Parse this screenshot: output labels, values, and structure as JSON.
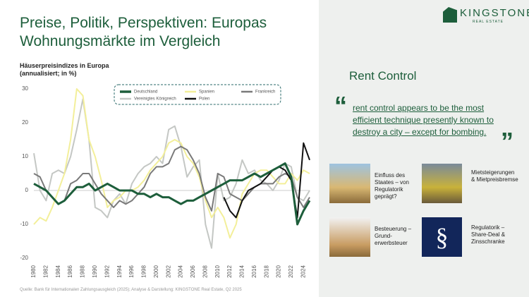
{
  "header": {
    "title_lines": [
      "Preise, Politik, Perspektiven: Europas",
      "Wohnungsmärkte im Vergleich"
    ]
  },
  "logo": {
    "name": "KINGSTONE",
    "tagline": "REAL ESTATE"
  },
  "chart_data": {
    "type": "line",
    "title_lines": [
      "Häuserpreisindizes in Europa",
      "(annualisiert; in %)"
    ],
    "x": [
      1980,
      1981,
      1982,
      1983,
      1984,
      1985,
      1986,
      1987,
      1988,
      1989,
      1990,
      1991,
      1992,
      1993,
      1994,
      1995,
      1996,
      1997,
      1998,
      1999,
      2000,
      2001,
      2002,
      2003,
      2004,
      2005,
      2006,
      2007,
      2008,
      2009,
      2010,
      2011,
      2012,
      2013,
      2014,
      2015,
      2016,
      2017,
      2018,
      2019,
      2020,
      2021,
      2022,
      2023,
      2024,
      2025
    ],
    "xlim": [
      1980,
      2025
    ],
    "xticks": [
      1980,
      1982,
      1984,
      1986,
      1988,
      1990,
      1992,
      1994,
      1996,
      1998,
      2000,
      2002,
      2004,
      2006,
      2008,
      2010,
      2012,
      2014,
      2016,
      2018,
      2020,
      2022,
      2024
    ],
    "ylim": [
      -20,
      30
    ],
    "yticks": [
      -20,
      -10,
      0,
      10,
      20,
      30
    ],
    "series": [
      {
        "name": "Deutschland",
        "color": "#1d5e3b",
        "width": 3,
        "values": [
          2,
          1,
          0,
          -2,
          -4,
          -3,
          -1,
          1,
          1,
          2,
          0,
          1,
          2,
          1,
          0,
          0,
          0,
          -1,
          -1,
          -2,
          -1,
          -2,
          -2,
          -3,
          -4,
          -3,
          -3,
          -2,
          -1,
          0,
          1,
          2,
          3,
          3,
          3,
          4,
          5,
          4,
          5,
          6,
          7,
          8,
          4,
          -10,
          -6,
          -3
        ]
      },
      {
        "name": "Spanien",
        "color": "#f3ef9a",
        "width": 2,
        "values": [
          -10,
          -8,
          -9,
          -5,
          0,
          5,
          15,
          30,
          28,
          15,
          10,
          3,
          -5,
          -3,
          -2,
          0,
          0,
          1,
          3,
          6,
          8,
          10,
          14,
          15,
          14,
          10,
          8,
          4,
          -3,
          -8,
          -5,
          -8,
          -14,
          -10,
          -1,
          2,
          5,
          6,
          6,
          4,
          2,
          2,
          5,
          3,
          6,
          5
        ]
      },
      {
        "name": "Frankreich",
        "color": "#7a7a7a",
        "width": 2,
        "values": [
          5,
          4,
          0,
          -2,
          -4,
          -3,
          2,
          3,
          5,
          5,
          2,
          -1,
          -3,
          -5,
          -3,
          -4,
          -3,
          -1,
          1,
          5,
          7,
          7,
          8,
          12,
          13,
          12,
          9,
          5,
          -2,
          -6,
          5,
          4,
          -1,
          -2,
          -3,
          -1,
          1,
          2,
          2,
          2,
          4,
          5,
          4,
          -2,
          -5,
          -2
        ]
      },
      {
        "name": "Vereinigtes Königreich",
        "color": "#c4c7c4",
        "width": 2,
        "values": [
          11,
          0,
          -3,
          5,
          6,
          5,
          10,
          18,
          27,
          15,
          -5,
          -6,
          -8,
          -3,
          -1,
          -4,
          2,
          5,
          7,
          8,
          10,
          8,
          18,
          19,
          13,
          4,
          7,
          9,
          -10,
          -17,
          5,
          -3,
          -2,
          2,
          9,
          5,
          6,
          3,
          2,
          0,
          3,
          8,
          7,
          -2,
          -3,
          0
        ]
      },
      {
        "name": "Polen",
        "color": "#111111",
        "width": 2,
        "values": [
          null,
          null,
          null,
          null,
          null,
          null,
          null,
          null,
          null,
          null,
          null,
          null,
          null,
          null,
          null,
          null,
          null,
          null,
          null,
          null,
          null,
          null,
          null,
          null,
          null,
          null,
          null,
          null,
          null,
          null,
          null,
          -2,
          -6,
          -8,
          -3,
          0,
          1,
          2,
          4,
          6,
          7,
          6,
          3,
          -8,
          14,
          9
        ]
      }
    ]
  },
  "panel": {
    "heading": "Rent Control",
    "quote_open": "“",
    "quote_close": "”",
    "quote_lines": [
      "rent control appears to be the most",
      "efficient technique presently known to",
      "destroy a city – except for bombing."
    ]
  },
  "tiles": [
    {
      "lines": [
        "Einfluss des",
        "Staates – von",
        "Regulatorik",
        "geprägt?"
      ]
    },
    {
      "lines": [
        "Mietsteigerungen",
        "& Mietpreisbremse"
      ]
    },
    {
      "lines": [
        "Besteuerung –",
        "Grund-",
        "erwerbsteuer"
      ]
    },
    {
      "lines": [
        "Regulatorik –",
        "Share-Deal &",
        "Zinsschranke"
      ]
    }
  ],
  "footer": {
    "source": "Quelle: Bank für Internationalen Zahlungsausgleich (2025); Analyse & Darstellung: KINGSTONE Real Estate, Q2 2025"
  }
}
